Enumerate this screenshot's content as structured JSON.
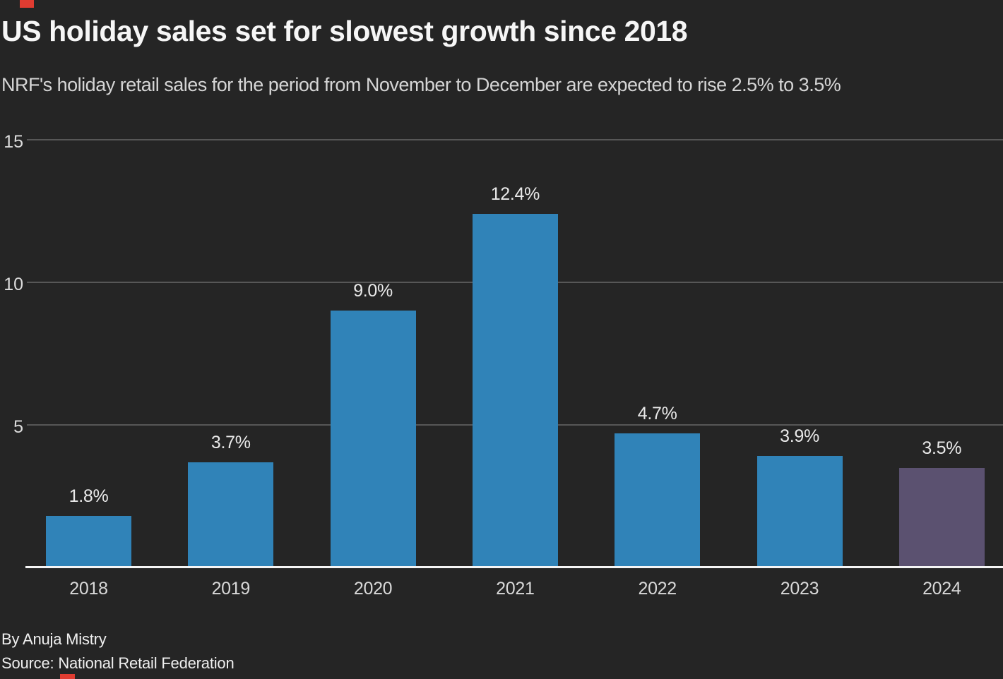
{
  "branding": {
    "accent_red": "#e03c31"
  },
  "header": {
    "title": "US holiday sales set for slowest growth since 2018",
    "subtitle": "NRF's holiday retail sales for the period from November to December are expected to rise 2.5% to 3.5%"
  },
  "footer": {
    "byline": "By Anuja Mistry",
    "source": "Source: National Retail Federation"
  },
  "chart_data": {
    "type": "bar",
    "title": "US holiday sales set for slowest growth since 2018",
    "subtitle": "NRF's holiday retail sales for the period from November to December are expected to rise 2.5% to 3.5%",
    "categories": [
      "2018",
      "2019",
      "2020",
      "2021",
      "2022",
      "2023",
      "2024"
    ],
    "values": [
      1.8,
      3.7,
      9.0,
      12.4,
      4.7,
      3.9,
      3.5
    ],
    "value_labels": [
      "1.8%",
      "3.7%",
      "9.0%",
      "12.4%",
      "4.7%",
      "3.9%",
      "3.5%"
    ],
    "yticks": [
      15,
      10,
      5
    ],
    "ylim": [
      0,
      15
    ],
    "grid": true,
    "legend": "none",
    "bar_colors": [
      "#3083b8",
      "#3083b8",
      "#3083b8",
      "#3083b8",
      "#3083b8",
      "#3083b8",
      "#5b5170"
    ],
    "colors": {
      "background": "#252525",
      "gridline": "#575757",
      "baseline": "#f5f5f5",
      "bar_blue": "#3083b8",
      "bar_forecast_purple": "#5b5170",
      "title_text": "#f6f6f6",
      "subtitle_text": "#d5d5d5"
    }
  }
}
